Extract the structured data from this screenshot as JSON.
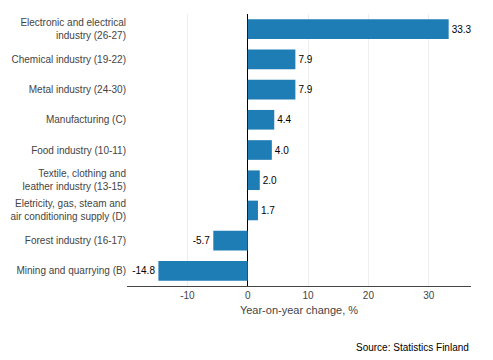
{
  "chart_data": {
    "type": "bar",
    "orientation": "horizontal",
    "categories": [
      "Mining and quarrying (B)",
      "Forest industry (16-17)",
      "Eletricity, gas, steam and\nair conditioning supply (D)",
      "Textile, clothing and\nleather industry (13-15)",
      "Food industry (10-11)",
      "Manufacturing (C)",
      "Metal industry (24-30)",
      "Chemical industry (19-22)",
      "Electronic and electrical\nindustry (26-27)"
    ],
    "values": [
      -14.8,
      -5.7,
      1.7,
      2.0,
      4.0,
      4.4,
      7.9,
      7.9,
      33.3
    ],
    "value_labels": [
      "-14.8",
      "-5.7",
      "1.7",
      "2.0",
      "4.0",
      "4.4",
      "7.9",
      "7.9",
      "33.3"
    ],
    "data_labels": true,
    "color": "#1f7db5",
    "xlabel": "Year-on-year change, %",
    "annotations": [
      "Source: Statistics Finland"
    ],
    "xlim": [
      -20,
      37
    ],
    "xticks": [
      -10,
      0,
      10,
      20,
      30
    ],
    "grid": true
  }
}
